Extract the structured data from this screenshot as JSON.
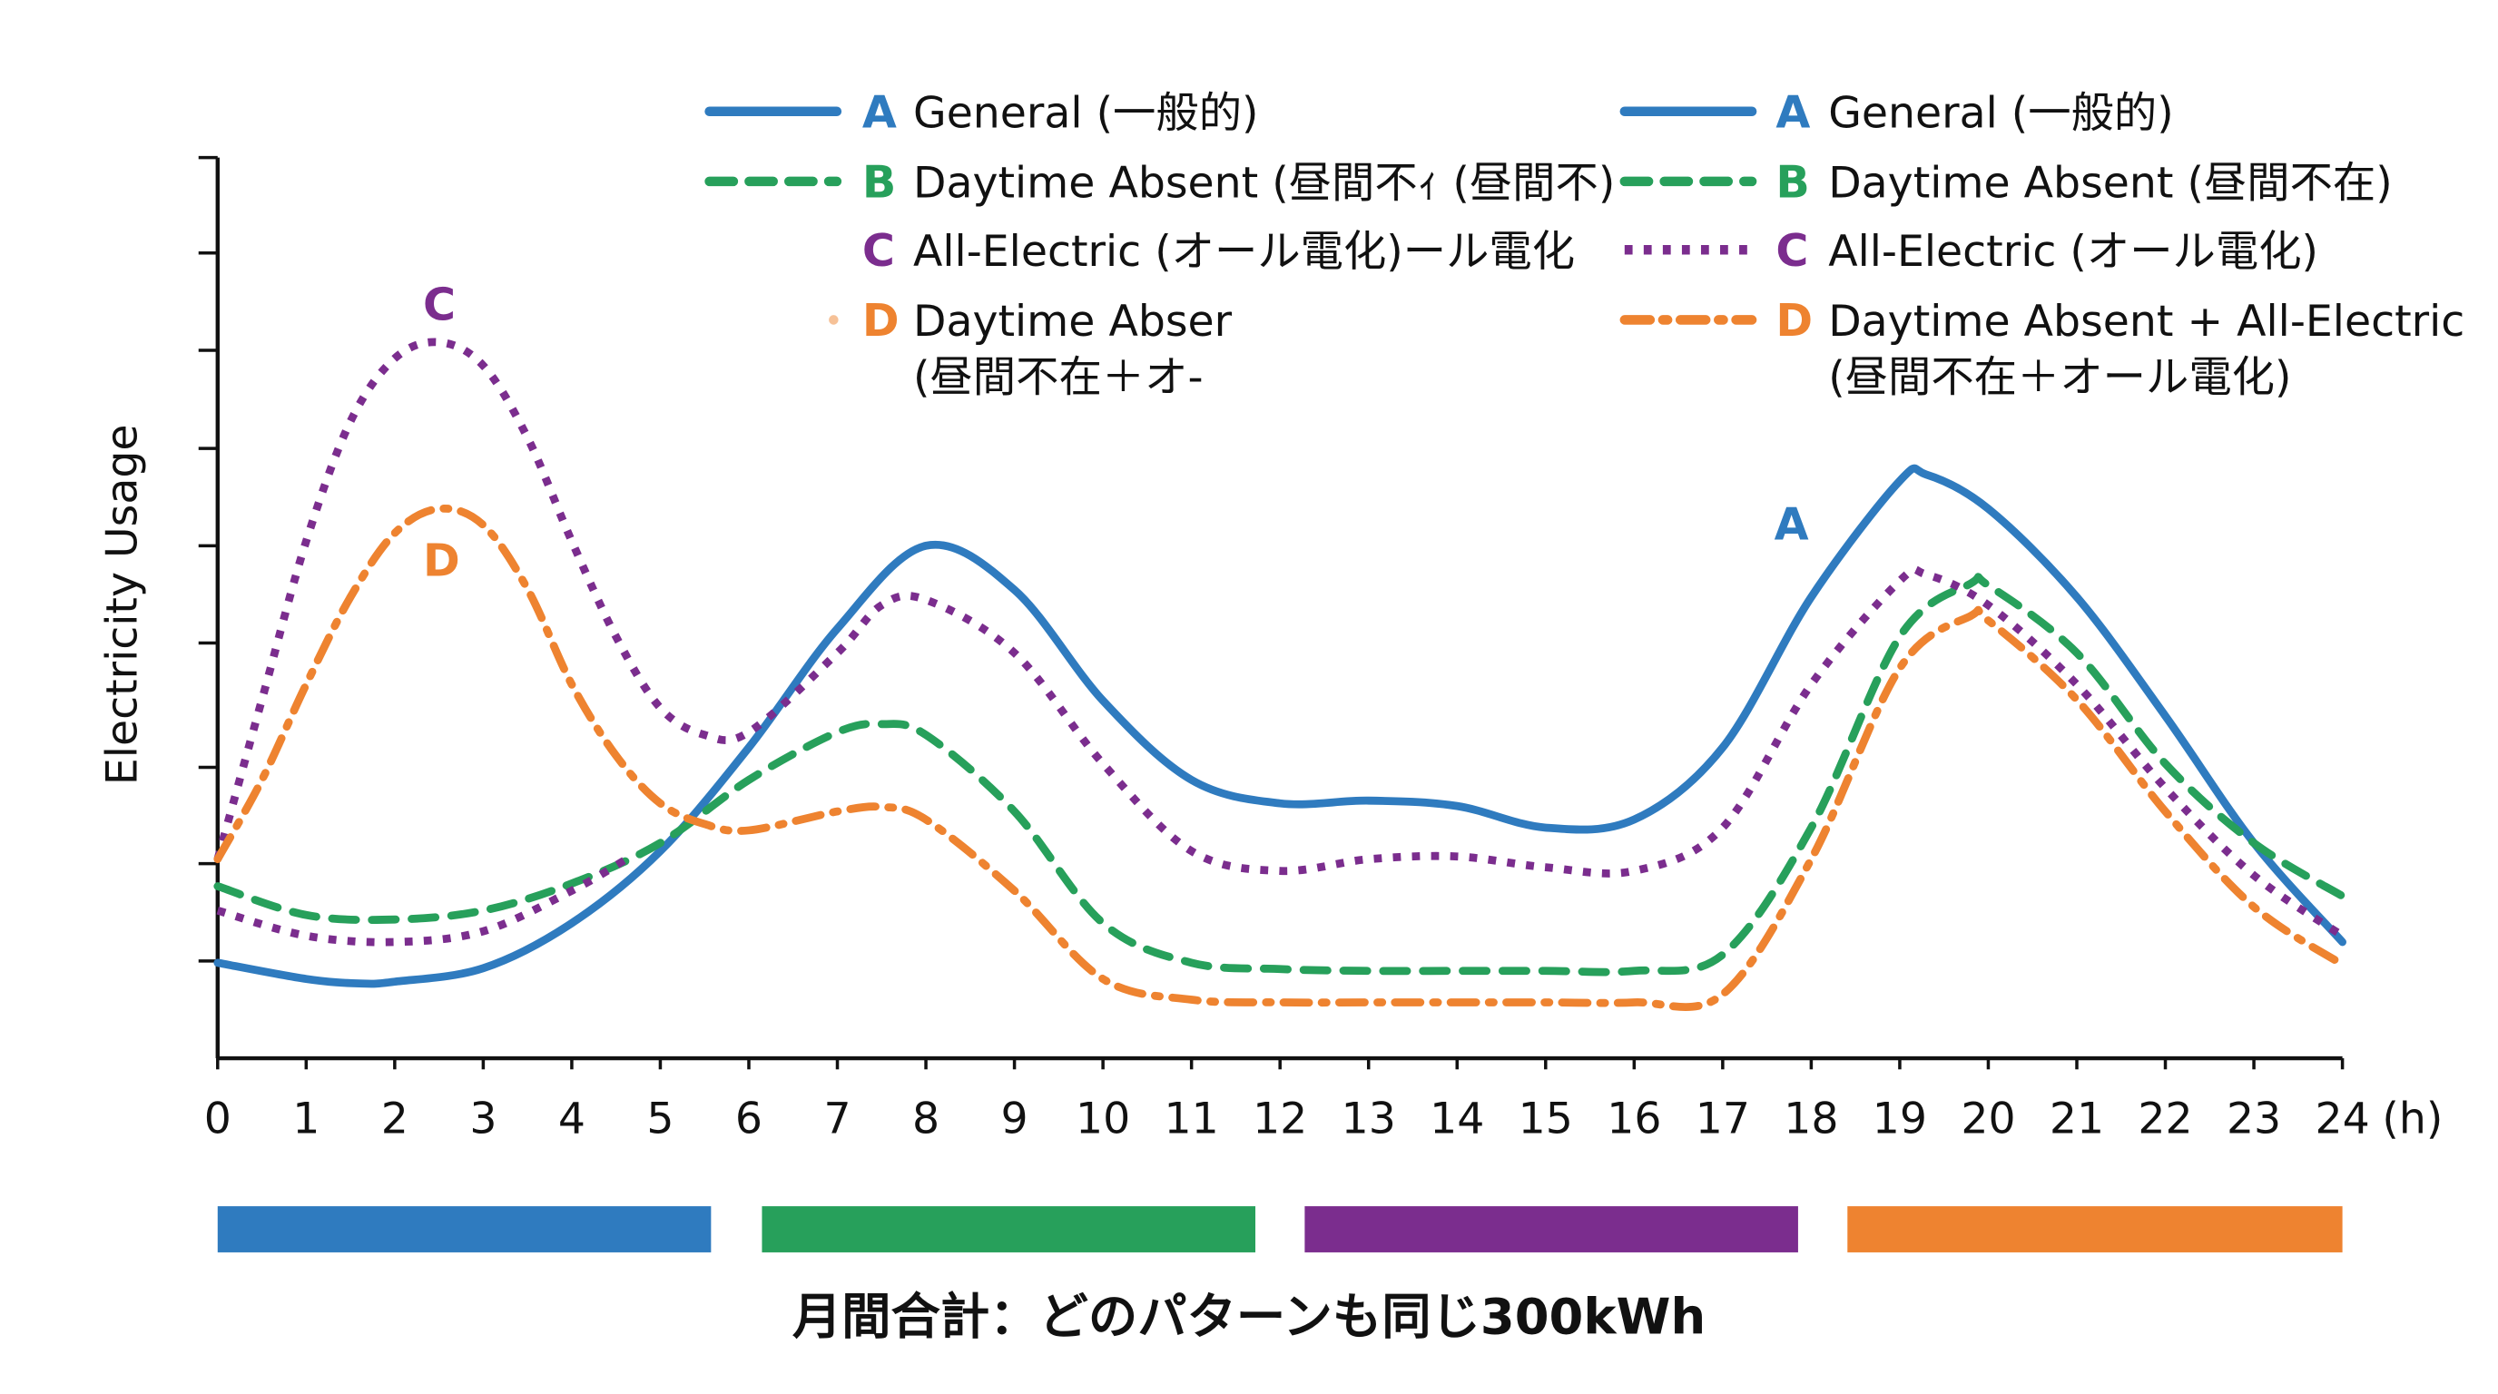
{
  "colors": {
    "A": "#2f7bbf",
    "B": "#27a05b",
    "C": "#7b2d8e",
    "D": "#ee8330",
    "axis": "#111111"
  },
  "legend_left": [
    {
      "letter": "A",
      "label": "General (一般的)",
      "style": "solid",
      "color_key": "A"
    },
    {
      "letter": "B",
      "label": "Daytime Absent (昼間不ｨ (昼間不)",
      "style": "dashed",
      "color_key": "B"
    },
    {
      "letter": "C",
      "label": "All-Electric (オール電化)ール電化",
      "style": "none",
      "color_key": "C"
    },
    {
      "letter": "D",
      "label": "Daytime Abser",
      "label2": "(昼間不在＋オ-",
      "style": "dot",
      "color_key": "D"
    }
  ],
  "legend_right": [
    {
      "letter": "A",
      "label": "General (一般的)",
      "style": "solid",
      "color_key": "A"
    },
    {
      "letter": "B",
      "label": "Daytime Absent (昼間不在)",
      "style": "dashed",
      "color_key": "B"
    },
    {
      "letter": "C",
      "label": "All-Electric (オール電化)",
      "style": "dotted",
      "color_key": "C"
    },
    {
      "letter": "D",
      "label": "Daytime Absent + All-Electric",
      "label2": "(昼間不在＋オール電化)",
      "style": "dashdot",
      "color_key": "D"
    }
  ],
  "annotations": {
    "A": "A",
    "C": "C",
    "D": "D"
  },
  "footer": "月間合計：どのパターンも同じ300kWh",
  "chart_data": {
    "type": "line",
    "title": "",
    "xlabel": "(h)",
    "ylabel": "Electricity Usage",
    "xlim": [
      0,
      24
    ],
    "ylim": [
      0,
      10
    ],
    "y_tick_labels": false,
    "grid": false,
    "legend_placement": "top",
    "x_ticks": [
      "0",
      "1",
      "2",
      "3",
      "4",
      "5",
      "6",
      "7",
      "8",
      "9",
      "10",
      "11",
      "12",
      "13",
      "14",
      "15",
      "16",
      "17",
      "18",
      "19",
      "20",
      "21",
      "22",
      "23",
      "24"
    ],
    "series": [
      {
        "name": "A General (一般的)",
        "key": "A",
        "style": "solid",
        "x": [
          0,
          1,
          1.6,
          2,
          3,
          4,
          5,
          6,
          7,
          8,
          9,
          10,
          11,
          12,
          13,
          14,
          15,
          16,
          17,
          18,
          19,
          19.3,
          20,
          21,
          22,
          23,
          24
        ],
        "y": [
          1.06,
          0.88,
          0.83,
          0.85,
          1.0,
          1.5,
          2.3,
          3.45,
          4.77,
          5.69,
          5.2,
          3.97,
          3.09,
          2.83,
          2.86,
          2.8,
          2.56,
          2.65,
          3.45,
          5.12,
          6.41,
          6.48,
          6.1,
          5.12,
          3.8,
          2.39,
          1.29
        ]
      },
      {
        "name": "B Daytime Absent (昼間不在)",
        "key": "B",
        "style": "dashed",
        "x": [
          0,
          1,
          2,
          3,
          4,
          5,
          6,
          7,
          7.5,
          8,
          9,
          10,
          11,
          12,
          13,
          14,
          15,
          16,
          17,
          18,
          19,
          19.8,
          20,
          21,
          22,
          23,
          24
        ],
        "y": [
          1.91,
          1.59,
          1.54,
          1.64,
          1.94,
          2.39,
          3.09,
          3.62,
          3.71,
          3.59,
          2.74,
          1.5,
          1.06,
          0.99,
          0.97,
          0.97,
          0.97,
          0.97,
          1.15,
          2.56,
          4.68,
          5.27,
          5.25,
          4.5,
          3.27,
          2.39,
          1.8
        ]
      },
      {
        "name": "C All-Electric (オール電化)",
        "key": "C",
        "style": "dotted",
        "x": [
          0,
          0.5,
          1,
          1.5,
          2,
          2.5,
          3,
          3.5,
          4,
          4.5,
          5,
          5.5,
          6,
          7,
          7.5,
          8,
          9,
          10,
          11,
          12,
          13,
          14,
          15,
          16,
          17,
          18,
          19,
          19.3,
          20,
          21,
          22,
          23,
          24
        ],
        "y": [
          2.21,
          3.98,
          5.74,
          7.07,
          7.77,
          7.95,
          7.69,
          6.89,
          5.74,
          4.68,
          3.89,
          3.59,
          3.62,
          4.5,
          5.03,
          5.09,
          4.5,
          3.27,
          2.3,
          2.08,
          2.21,
          2.24,
          2.12,
          2.08,
          2.56,
          4.15,
          5.3,
          5.37,
          5.03,
          4.15,
          3.0,
          2.03,
          1.36
        ]
      },
      {
        "key": "C",
        "style": "dotted",
        "x": [
          0,
          1,
          2,
          3,
          4,
          4.6
        ],
        "y": [
          1.64,
          1.36,
          1.29,
          1.41,
          1.86,
          2.2
        ]
      },
      {
        "name": "D Daytime Absent + All-Electric (昼間不在＋オール電化)",
        "key": "D",
        "style": "dashdot",
        "x": [
          0,
          0.5,
          1,
          1.5,
          2,
          2.5,
          3,
          3.5,
          4,
          4.5,
          5,
          5.5,
          6,
          7,
          7.5,
          8,
          9,
          10,
          11,
          12,
          13,
          14,
          15,
          16,
          17,
          18,
          19,
          19.8,
          20,
          21,
          22,
          23,
          24
        ],
        "y": [
          2.21,
          3.09,
          4.15,
          5.12,
          5.83,
          6.1,
          5.92,
          5.21,
          4.15,
          3.36,
          2.83,
          2.6,
          2.53,
          2.74,
          2.79,
          2.65,
          1.86,
          0.88,
          0.65,
          0.62,
          0.62,
          0.62,
          0.62,
          0.62,
          0.71,
          2.21,
          4.33,
          4.91,
          4.86,
          3.98,
          2.74,
          1.68,
          1.04
        ]
      }
    ],
    "color_bars": [
      "A",
      "B",
      "C",
      "D"
    ]
  }
}
